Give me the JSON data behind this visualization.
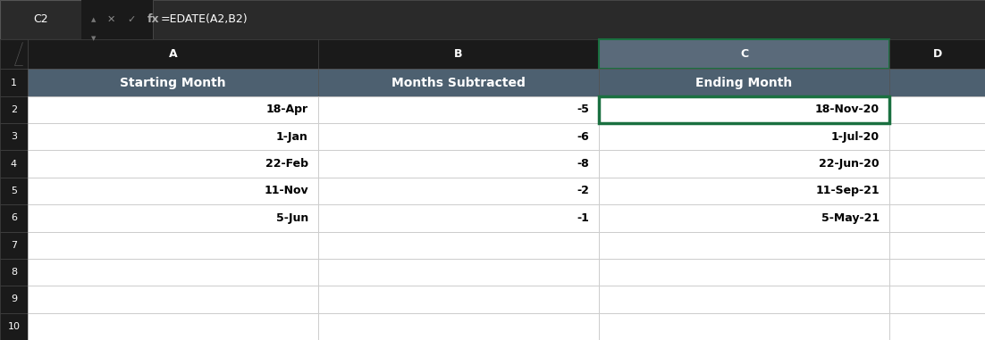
{
  "formula_bar_text": "=EDATE(A2,B2)",
  "cell_ref": "C2",
  "col_headers": [
    "A",
    "B",
    "C",
    "D"
  ],
  "row_headers": [
    "1",
    "2",
    "3",
    "4",
    "5",
    "6",
    "7",
    "8",
    "9",
    "10"
  ],
  "header_row": [
    "Starting Month",
    "Months Subtracted",
    "Ending Month"
  ],
  "data_rows": [
    [
      "18-Apr",
      "-5",
      "18-Nov-20"
    ],
    [
      "1-Jan",
      "-6",
      "1-Jul-20"
    ],
    [
      "22-Feb",
      "-8",
      "22-Jun-20"
    ],
    [
      "11-Nov",
      "-2",
      "11-Sep-21"
    ],
    [
      "5-Jun",
      "-1",
      "5-May-21"
    ]
  ],
  "header_bg": "#4a5568",
  "header_text": "#ffffff",
  "cell_bg": "#ffffff",
  "grid_color": "#c8c8c8",
  "selected_cell_border": "#1a7040",
  "formula_bar_text_color": "#ffffff",
  "col_header_bg": "#1a1a1a",
  "col_header_text": "#ffffff",
  "data_text_color": "#000000",
  "title_row_bg": "#4d6070",
  "top_bar_bg": "#1a1a1a",
  "col_c_header_bg": "#5a6a7a"
}
